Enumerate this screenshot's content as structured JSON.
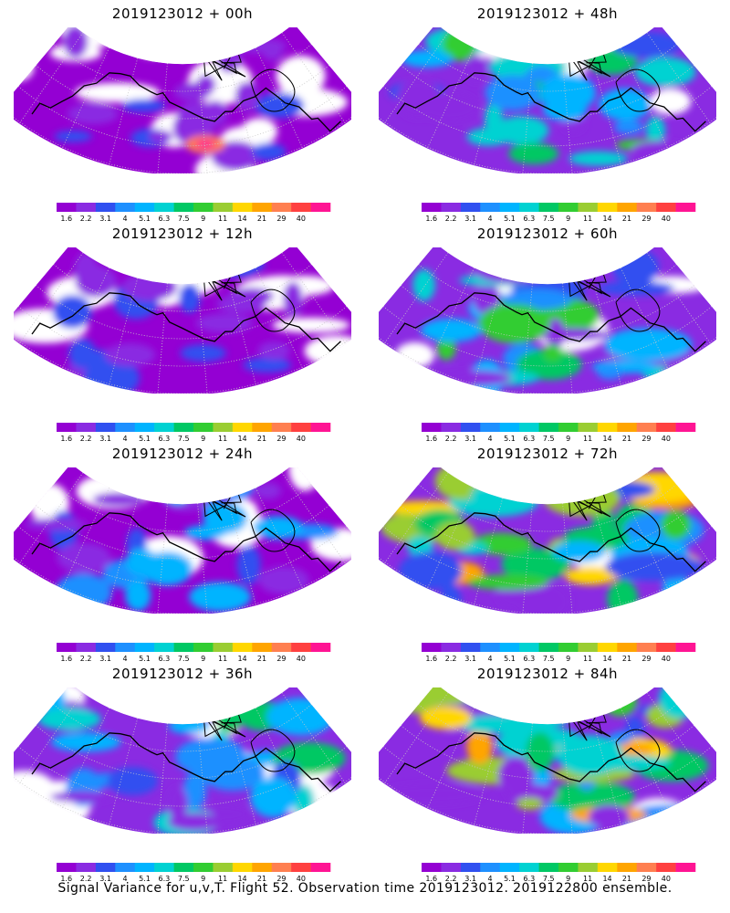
{
  "caption": "Signal Variance for u,v,T. Flight 52. Observation time 2019123012. 2019122800 ensemble.",
  "chart_data": [
    {
      "type": "heatmap",
      "title": "2019123012 + 00h",
      "lead_hours": 0,
      "max_level": "40"
    },
    {
      "type": "heatmap",
      "title": "2019123012 + 48h",
      "lead_hours": 48,
      "max_level": "9"
    },
    {
      "type": "heatmap",
      "title": "2019123012 + 12h",
      "lead_hours": 12,
      "max_level": "7.5"
    },
    {
      "type": "heatmap",
      "title": "2019123012 + 60h",
      "lead_hours": 60,
      "max_level": "21"
    },
    {
      "type": "heatmap",
      "title": "2019123012 + 24h",
      "lead_hours": 24,
      "max_level": "7.5"
    },
    {
      "type": "heatmap",
      "title": "2019123012 + 72h",
      "lead_hours": 72,
      "max_level": "21"
    },
    {
      "type": "heatmap",
      "title": "2019123012 + 36h",
      "lead_hours": 36,
      "max_level": "14"
    },
    {
      "type": "heatmap",
      "title": "2019123012 + 84h",
      "lead_hours": 84,
      "max_level": "21"
    }
  ],
  "colorbar": {
    "labels": [
      "1.6",
      "2.2",
      "3.1",
      "4",
      "5.1",
      "6.3",
      "7.5",
      "9",
      "11",
      "14",
      "21",
      "29",
      "40"
    ],
    "colors": [
      "#9400d3",
      "#8a2be2",
      "#3050f0",
      "#1e90ff",
      "#00b4ff",
      "#00d2d2",
      "#00c864",
      "#32cd32",
      "#9acd32",
      "#ffd700",
      "#ffa500",
      "#ff7f50",
      "#ff4040",
      "#ff1493"
    ]
  },
  "style": {
    "missing": "#ffffff",
    "coast": "#000000",
    "grid": "#c8c8c8"
  }
}
